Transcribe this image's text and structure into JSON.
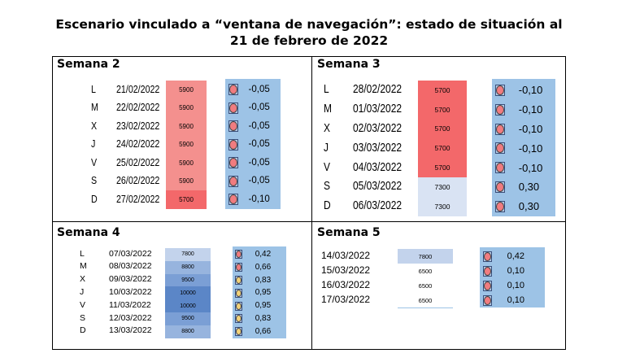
{
  "title": {
    "line1": "Escenario vinculado a “ventana de navegación”: estado de situación al",
    "line2": "21 de febrero de 2022"
  },
  "colors": {
    "red_light": "#f4908e",
    "red": "#f3686a",
    "blue_pale": "#d9e3f3",
    "blue_value": "#9dc3e6",
    "dot_red": "#f07c80",
    "dot_yellow": "#f2d27a"
  },
  "panels": [
    {
      "title": "Semana 2",
      "rows": [
        {
          "day": "L",
          "date": "21/02/2022",
          "count": "5900",
          "value": "-0,05",
          "cell_color": "#f4908e",
          "dot": "red"
        },
        {
          "day": "M",
          "date": "22/02/2022",
          "count": "5900",
          "value": "-0,05",
          "cell_color": "#f4908e",
          "dot": "red"
        },
        {
          "day": "X",
          "date": "23/02/2022",
          "count": "5900",
          "value": "-0,05",
          "cell_color": "#f4908e",
          "dot": "red"
        },
        {
          "day": "J",
          "date": "24/02/2022",
          "count": "5900",
          "value": "-0,05",
          "cell_color": "#f4908e",
          "dot": "red"
        },
        {
          "day": "V",
          "date": "25/02/2022",
          "count": "5900",
          "value": "-0,05",
          "cell_color": "#f4908e",
          "dot": "red"
        },
        {
          "day": "S",
          "date": "26/02/2022",
          "count": "5900",
          "value": "-0,05",
          "cell_color": "#f4908e",
          "dot": "red"
        },
        {
          "day": "D",
          "date": "27/02/2022",
          "count": "5700",
          "value": "-0,10",
          "cell_color": "#f3686a",
          "dot": "red"
        }
      ]
    },
    {
      "title": "Semana 3",
      "rows": [
        {
          "day": "L",
          "date": "28/02/2022",
          "count": "5700",
          "value": "-0,10",
          "cell_color": "#f3686a",
          "dot": "red"
        },
        {
          "day": "M",
          "date": "01/03/2022",
          "count": "5700",
          "value": "-0,10",
          "cell_color": "#f3686a",
          "dot": "red"
        },
        {
          "day": "X",
          "date": "02/03/2022",
          "count": "5700",
          "value": "-0,10",
          "cell_color": "#f3686a",
          "dot": "red"
        },
        {
          "day": "J",
          "date": "03/03/2022",
          "count": "5700",
          "value": "-0,10",
          "cell_color": "#f3686a",
          "dot": "red"
        },
        {
          "day": "V",
          "date": "04/03/2022",
          "count": "5700",
          "value": "-0,10",
          "cell_color": "#f3686a",
          "dot": "red"
        },
        {
          "day": "S",
          "date": "05/03/2022",
          "count": "7300",
          "value": "0,30",
          "cell_color": "#d9e3f3",
          "dot": "red"
        },
        {
          "day": "D",
          "date": "06/03/2022",
          "count": "7300",
          "value": "0,30",
          "cell_color": "#d9e3f3",
          "dot": "red"
        }
      ]
    },
    {
      "title": "Semana 4",
      "rows": [
        {
          "day": "L",
          "date": "07/03/2022",
          "count": "7800",
          "value": "0,42",
          "cell_color": "#c3d3ec",
          "dot": "red"
        },
        {
          "day": "M",
          "date": "08/03/2022",
          "count": "8800",
          "value": "0,66",
          "cell_color": "#97b4de",
          "dot": "red"
        },
        {
          "day": "X",
          "date": "09/03/2022",
          "count": "9500",
          "value": "0,83",
          "cell_color": "#7b9fd5",
          "dot": "yellow"
        },
        {
          "day": "J",
          "date": "10/03/2022",
          "count": "10000",
          "value": "0,95",
          "cell_color": "#5b86c7",
          "dot": "yellow"
        },
        {
          "day": "V",
          "date": "11/03/2022",
          "count": "10000",
          "value": "0,95",
          "cell_color": "#5b86c7",
          "dot": "yellow"
        },
        {
          "day": "S",
          "date": "12/03/2022",
          "count": "9500",
          "value": "0,83",
          "cell_color": "#7b9fd5",
          "dot": "yellow"
        },
        {
          "day": "D",
          "date": "13/03/2022",
          "count": "8800",
          "value": "0,66",
          "cell_color": "#97b4de",
          "dot": "yellow"
        }
      ]
    },
    {
      "title": "Semana 5",
      "rows": [
        {
          "day": "",
          "date": "14/03/2022",
          "count": "7800",
          "value": "0,42",
          "cell_color": "#c3d3ec",
          "dot": "red"
        },
        {
          "day": "",
          "date": "15/03/2022",
          "count": "6500",
          "value": "0,10",
          "cell_color": "#ffffff",
          "dot": "red"
        },
        {
          "day": "",
          "date": "16/03/2022",
          "count": "6500",
          "value": "0,10",
          "cell_color": "#ffffff",
          "dot": "red"
        },
        {
          "day": "",
          "date": "17/03/2022",
          "count": "6500",
          "value": "0,10",
          "cell_color": "#ffffff",
          "dot": "red"
        }
      ]
    }
  ]
}
